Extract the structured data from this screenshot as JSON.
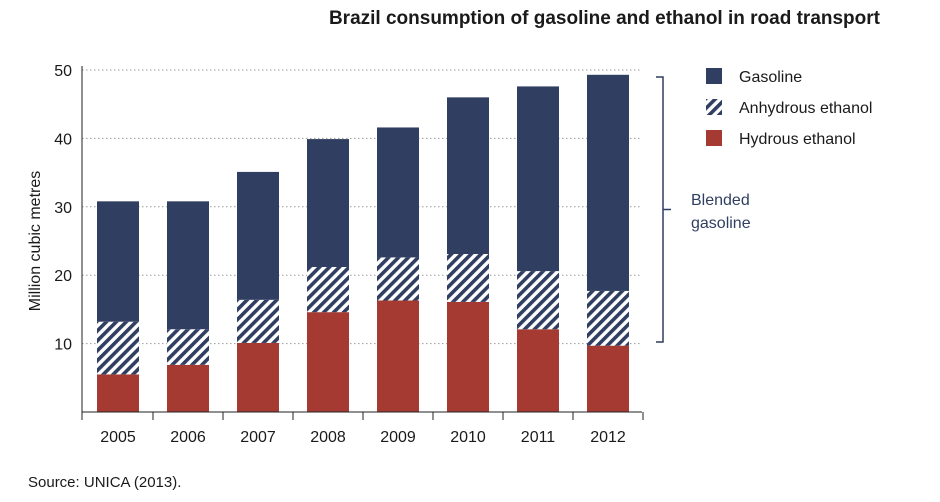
{
  "chart_data": {
    "type": "bar",
    "stacked": true,
    "title": "Brazil consumption of gasoline and ethanol in road transport",
    "ylabel": "Million cubic metres",
    "xlabel": "",
    "ylim": [
      0,
      50
    ],
    "yticks": [
      10,
      20,
      30,
      40,
      50
    ],
    "grid": true,
    "legend_position": "top-right",
    "categories": [
      "2005",
      "2006",
      "2007",
      "2008",
      "2009",
      "2010",
      "2011",
      "2012"
    ],
    "series": [
      {
        "name": "Hydrous ethanol",
        "color": "#a43a32",
        "pattern": "solid",
        "values": [
          5.5,
          6.9,
          10.1,
          14.6,
          16.3,
          16.1,
          12.1,
          9.7
        ]
      },
      {
        "name": "Anhydrous ethanol",
        "color": "#2f3e61",
        "pattern": "hatched",
        "values": [
          7.7,
          5.2,
          6.3,
          6.6,
          6.3,
          7.0,
          8.5,
          8.0
        ]
      },
      {
        "name": "Gasoline",
        "color": "#2f3e61",
        "pattern": "solid",
        "values": [
          17.6,
          18.7,
          18.7,
          18.7,
          19.0,
          22.9,
          27.0,
          31.6
        ]
      }
    ],
    "legend_order": [
      "Gasoline",
      "Anhydrous ethanol",
      "Hydrous ethanol"
    ],
    "annotation": "Blended\ngasoline",
    "annotation_color": "#2f3e61"
  },
  "source": "Source: UNICA (2013)."
}
